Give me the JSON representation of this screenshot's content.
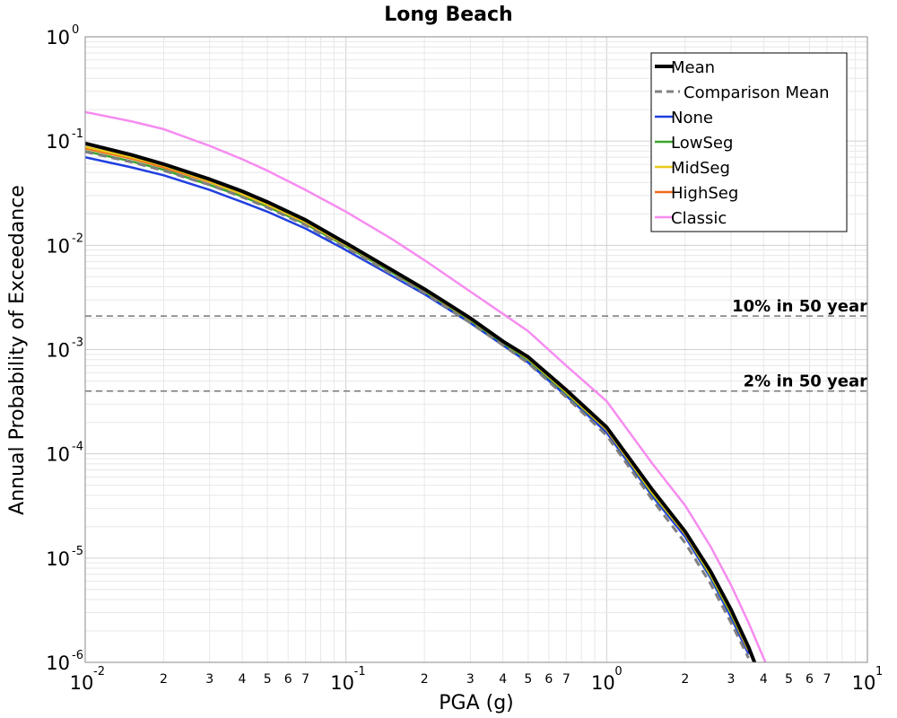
{
  "chart_data": {
    "type": "line",
    "title": "Long Beach",
    "xlabel": "PGA (g)",
    "ylabel": "Annual Probability of Exceedance",
    "x_scale": "log",
    "y_scale": "log",
    "xlim": [
      0.01,
      10
    ],
    "ylim": [
      1e-06,
      1
    ],
    "grid": true,
    "legend_position": "top-right",
    "x_major_ticks": [
      {
        "value": 0.01,
        "base": "10",
        "exp": "-2"
      },
      {
        "value": 0.1,
        "base": "10",
        "exp": "-1"
      },
      {
        "value": 1,
        "base": "10",
        "exp": "0"
      },
      {
        "value": 10,
        "base": "10",
        "exp": "1"
      }
    ],
    "y_major_ticks": [
      {
        "value": 1,
        "base": "10",
        "exp": "0"
      },
      {
        "value": 0.1,
        "base": "10",
        "exp": "-1"
      },
      {
        "value": 0.01,
        "base": "10",
        "exp": "-2"
      },
      {
        "value": 0.001,
        "base": "10",
        "exp": "-3"
      },
      {
        "value": 0.0001,
        "base": "10",
        "exp": "-4"
      },
      {
        "value": 1e-05,
        "base": "10",
        "exp": "-5"
      },
      {
        "value": 1e-06,
        "base": "10",
        "exp": "-6"
      }
    ],
    "x_minor_tick_labels": [
      "2",
      "3",
      "4",
      "5",
      "6",
      "7"
    ],
    "reference_lines": [
      {
        "label": "10% in 50 year",
        "y": 0.0021
      },
      {
        "label": "2% in 50 year",
        "y": 0.0004
      }
    ],
    "x": [
      0.01,
      0.015,
      0.02,
      0.03,
      0.04,
      0.05,
      0.07,
      0.1,
      0.15,
      0.2,
      0.3,
      0.4,
      0.5,
      0.7,
      1.0,
      1.5,
      2.0,
      2.5,
      3.0,
      3.5,
      4.0,
      4.5
    ],
    "series": [
      {
        "name": "Mean",
        "color": "#000000",
        "style": "solid-thick",
        "values": [
          0.095,
          0.074,
          0.06,
          0.043,
          0.033,
          0.026,
          0.0175,
          0.0105,
          0.0058,
          0.0038,
          0.002,
          0.0012,
          0.00085,
          0.00041,
          0.00018,
          4.5e-05,
          1.8e-05,
          7.5e-06,
          3.2e-06,
          1.4e-06,
          6e-07,
          null
        ]
      },
      {
        "name": "Comparison Mean",
        "color": "#808080",
        "style": "dashed",
        "values": [
          0.079,
          0.063,
          0.052,
          0.038,
          0.029,
          0.023,
          0.0156,
          0.0095,
          0.0053,
          0.0035,
          0.0018,
          0.0011,
          0.00074,
          0.00035,
          0.00015,
          3.6e-05,
          1.4e-05,
          5.7e-06,
          2.4e-06,
          1.1e-06,
          null,
          null
        ]
      },
      {
        "name": "None",
        "color": "#1f3fe0",
        "style": "solid",
        "values": [
          0.07,
          0.056,
          0.047,
          0.034,
          0.026,
          0.021,
          0.0145,
          0.009,
          0.0051,
          0.0034,
          0.0018,
          0.0011,
          0.00075,
          0.00036,
          0.00016,
          3.9e-05,
          1.6e-05,
          6.5e-06,
          2.7e-06,
          1.2e-06,
          null,
          null
        ]
      },
      {
        "name": "LowSeg",
        "color": "#3aa52a",
        "style": "solid",
        "values": [
          0.08,
          0.064,
          0.053,
          0.038,
          0.0295,
          0.0235,
          0.016,
          0.0098,
          0.0055,
          0.0036,
          0.0019,
          0.00115,
          0.0008,
          0.00038,
          0.00017,
          4.1e-05,
          1.7e-05,
          6.8e-06,
          2.9e-06,
          1.3e-06,
          null,
          null
        ]
      },
      {
        "name": "MidSeg",
        "color": "#e8c81a",
        "style": "solid",
        "values": [
          0.088,
          0.07,
          0.058,
          0.041,
          0.031,
          0.0245,
          0.0167,
          0.0101,
          0.0057,
          0.0037,
          0.00195,
          0.00118,
          0.00082,
          0.00039,
          0.000172,
          4.2e-05,
          1.72e-05,
          7e-06,
          3e-06,
          1.3e-06,
          null,
          null
        ]
      },
      {
        "name": "HighSeg",
        "color": "#f06a1a",
        "style": "solid",
        "values": [
          0.085,
          0.068,
          0.056,
          0.0405,
          0.031,
          0.0245,
          0.0166,
          0.0101,
          0.0057,
          0.0037,
          0.00195,
          0.00118,
          0.00082,
          0.00039,
          0.000171,
          4.2e-05,
          1.71e-05,
          7e-06,
          3e-06,
          1.3e-06,
          null,
          null
        ]
      },
      {
        "name": "Classic",
        "color": "#f68cf0",
        "style": "solid",
        "values": [
          0.19,
          0.155,
          0.13,
          0.09,
          0.067,
          0.052,
          0.034,
          0.021,
          0.0115,
          0.0072,
          0.0036,
          0.0022,
          0.0015,
          0.0007,
          0.00032,
          8e-05,
          3.2e-05,
          1.3e-05,
          5.5e-06,
          2.4e-06,
          1.1e-06,
          5.5e-07
        ]
      }
    ]
  }
}
